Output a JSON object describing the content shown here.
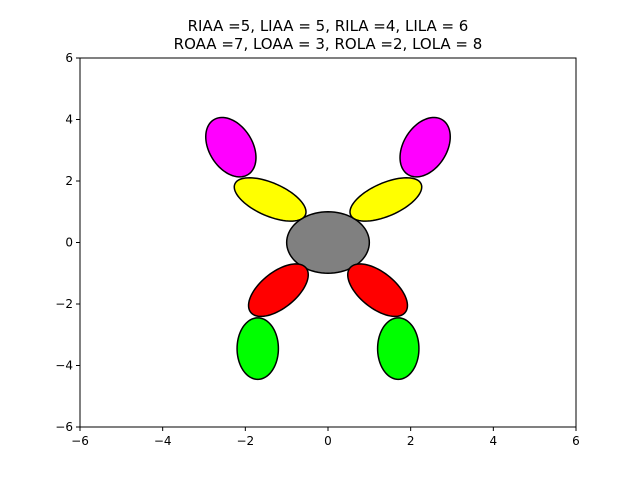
{
  "title_line1": "RIAA =5, LIAA = 5, RILA =4, LILA = 6",
  "title_line2": "ROAA =7, LOAA = 3, ROLA =2, LOLA = 8",
  "chart_data": {
    "type": "diagram",
    "xlim": [
      -6,
      6
    ],
    "ylim": [
      -6,
      6
    ],
    "xticks": [
      "−6",
      "−4",
      "−2",
      "0",
      "2",
      "4",
      "6"
    ],
    "yticks": [
      "−6",
      "−4",
      "−2",
      "0",
      "2",
      "4",
      "6"
    ],
    "xtick_values": [
      -6,
      -4,
      -2,
      0,
      2,
      4,
      6
    ],
    "ytick_values": [
      -6,
      -4,
      -2,
      0,
      2,
      4,
      6
    ],
    "grid": false,
    "shapes": [
      {
        "name": "body",
        "cx": 0,
        "cy": 0,
        "rx": 1.0,
        "ry": 1.0,
        "angle": 0,
        "color": "#808080"
      },
      {
        "name": "upper-left-inner",
        "cx": -1.4,
        "cy": 1.4,
        "rx": 1.0,
        "ry": 0.5,
        "angle": 145,
        "color": "#ffff00"
      },
      {
        "name": "upper-right-inner",
        "cx": 1.4,
        "cy": 1.4,
        "rx": 1.0,
        "ry": 0.5,
        "angle": 35,
        "color": "#ffff00"
      },
      {
        "name": "upper-left-outer",
        "cx": -2.35,
        "cy": 3.1,
        "rx": 1.0,
        "ry": 0.55,
        "angle": 108,
        "color": "#ff00ff"
      },
      {
        "name": "upper-right-outer",
        "cx": 2.35,
        "cy": 3.1,
        "rx": 1.0,
        "ry": 0.55,
        "angle": 72,
        "color": "#ff00ff"
      },
      {
        "name": "lower-left-inner",
        "cx": -1.2,
        "cy": -1.55,
        "rx": 1.0,
        "ry": 0.5,
        "angle": 233,
        "color": "#ff0000"
      },
      {
        "name": "lower-right-inner",
        "cx": 1.2,
        "cy": -1.55,
        "rx": 1.0,
        "ry": 0.5,
        "angle": 307,
        "color": "#ff0000"
      },
      {
        "name": "lower-left-outer",
        "cx": -1.7,
        "cy": -3.45,
        "rx": 1.0,
        "ry": 0.5,
        "angle": 270,
        "color": "#00ff00"
      },
      {
        "name": "lower-right-outer",
        "cx": 1.7,
        "cy": -3.45,
        "rx": 1.0,
        "ry": 0.5,
        "angle": 270,
        "color": "#00ff00"
      }
    ]
  }
}
